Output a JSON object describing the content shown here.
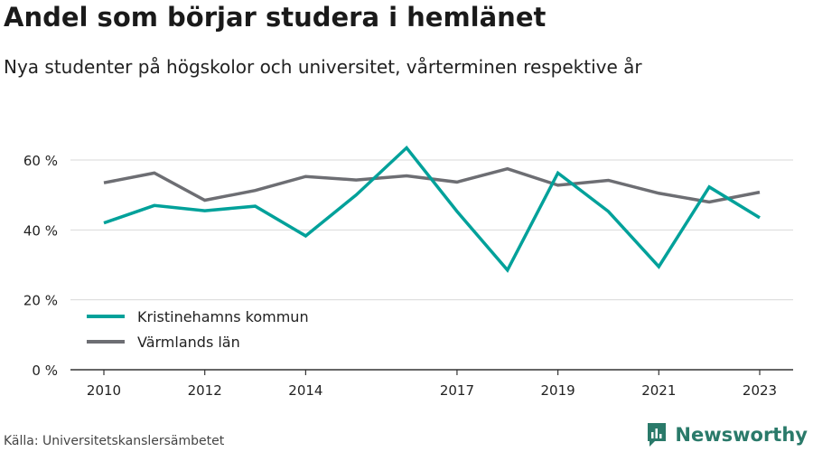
{
  "header": {
    "title": "Andel som börjar studera i hemlänet",
    "subtitle": "Nya studenter på högskolor och universitet, vårterminen respektive år"
  },
  "footer": {
    "source": "Källa: Universitetskanslersämbetet",
    "brand": "Newsworthy"
  },
  "colors": {
    "accent": "#00a19a",
    "secondary": "#6d6e73",
    "grid": "#d9d9d9",
    "axis": "#333333",
    "brand": "#2a7a6a"
  },
  "chart_data": {
    "type": "line",
    "title": "Andel som börjar studera i hemlänet",
    "subtitle": "Nya studenter på högskolor och universitet, vårterminen respektive år",
    "x": [
      2010,
      2011,
      2012,
      2013,
      2014,
      2015,
      2016,
      2017,
      2018,
      2019,
      2020,
      2021,
      2022,
      2023
    ],
    "x_tick_labels": [
      "2010",
      "2012",
      "2014",
      "2017",
      "2019",
      "2021",
      "2023"
    ],
    "x_tick_values": [
      2010,
      2012,
      2014,
      2017,
      2019,
      2021,
      2023
    ],
    "y_ticks": [
      0,
      20,
      40,
      60
    ],
    "y_tick_labels": [
      "0 %",
      "20 %",
      "40 %",
      "60 %"
    ],
    "ylim": [
      0,
      60
    ],
    "xlabel": "",
    "ylabel": "",
    "grid": true,
    "legend_position": "bottom-left",
    "series": [
      {
        "name": "Kristinehamns kommun",
        "color": "#00a19a",
        "values": [
          42.0,
          47.0,
          45.5,
          46.8,
          38.3,
          50.0,
          63.5,
          45.3,
          28.5,
          56.3,
          45.3,
          29.5,
          52.3,
          43.5
        ]
      },
      {
        "name": "Värmlands län",
        "color": "#6d6e73",
        "values": [
          53.5,
          56.3,
          48.5,
          51.3,
          55.3,
          54.3,
          55.5,
          53.7,
          57.5,
          52.8,
          54.2,
          50.5,
          48.0,
          50.8
        ]
      }
    ]
  }
}
